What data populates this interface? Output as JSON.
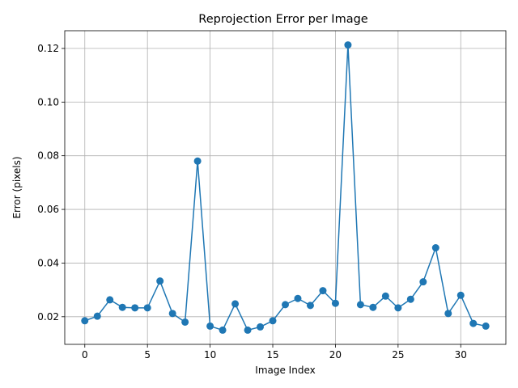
{
  "chart_data": {
    "type": "line",
    "title": "Reprojection Error per Image",
    "xlabel": "Image Index",
    "ylabel": "Error (pixels)",
    "xlim": [
      -1.6,
      33.6
    ],
    "ylim": [
      0.0097,
      0.1266
    ],
    "x_ticks": [
      0,
      5,
      10,
      15,
      20,
      25,
      30
    ],
    "x_tick_labels": [
      "0",
      "5",
      "10",
      "15",
      "20",
      "25",
      "30"
    ],
    "y_ticks": [
      0.02,
      0.04,
      0.06,
      0.08,
      0.1,
      0.12
    ],
    "y_tick_labels": [
      "0.02",
      "0.04",
      "0.06",
      "0.08",
      "0.10",
      "0.12"
    ],
    "grid": true,
    "line_color": "#1f77b4",
    "marker": "circle",
    "x": [
      0,
      1,
      2,
      3,
      4,
      5,
      6,
      7,
      8,
      9,
      10,
      11,
      12,
      13,
      14,
      15,
      16,
      17,
      18,
      19,
      20,
      21,
      22,
      23,
      24,
      25,
      26,
      27,
      28,
      29,
      30,
      31,
      32
    ],
    "values": [
      0.0185,
      0.0202,
      0.0263,
      0.0235,
      0.0233,
      0.0233,
      0.0333,
      0.0212,
      0.018,
      0.078,
      0.0165,
      0.015,
      0.0248,
      0.015,
      0.0162,
      0.0185,
      0.0245,
      0.0268,
      0.0242,
      0.0297,
      0.025,
      0.1213,
      0.0245,
      0.0235,
      0.0277,
      0.0233,
      0.0265,
      0.033,
      0.0457,
      0.0212,
      0.028,
      0.0175,
      0.0165
    ]
  }
}
